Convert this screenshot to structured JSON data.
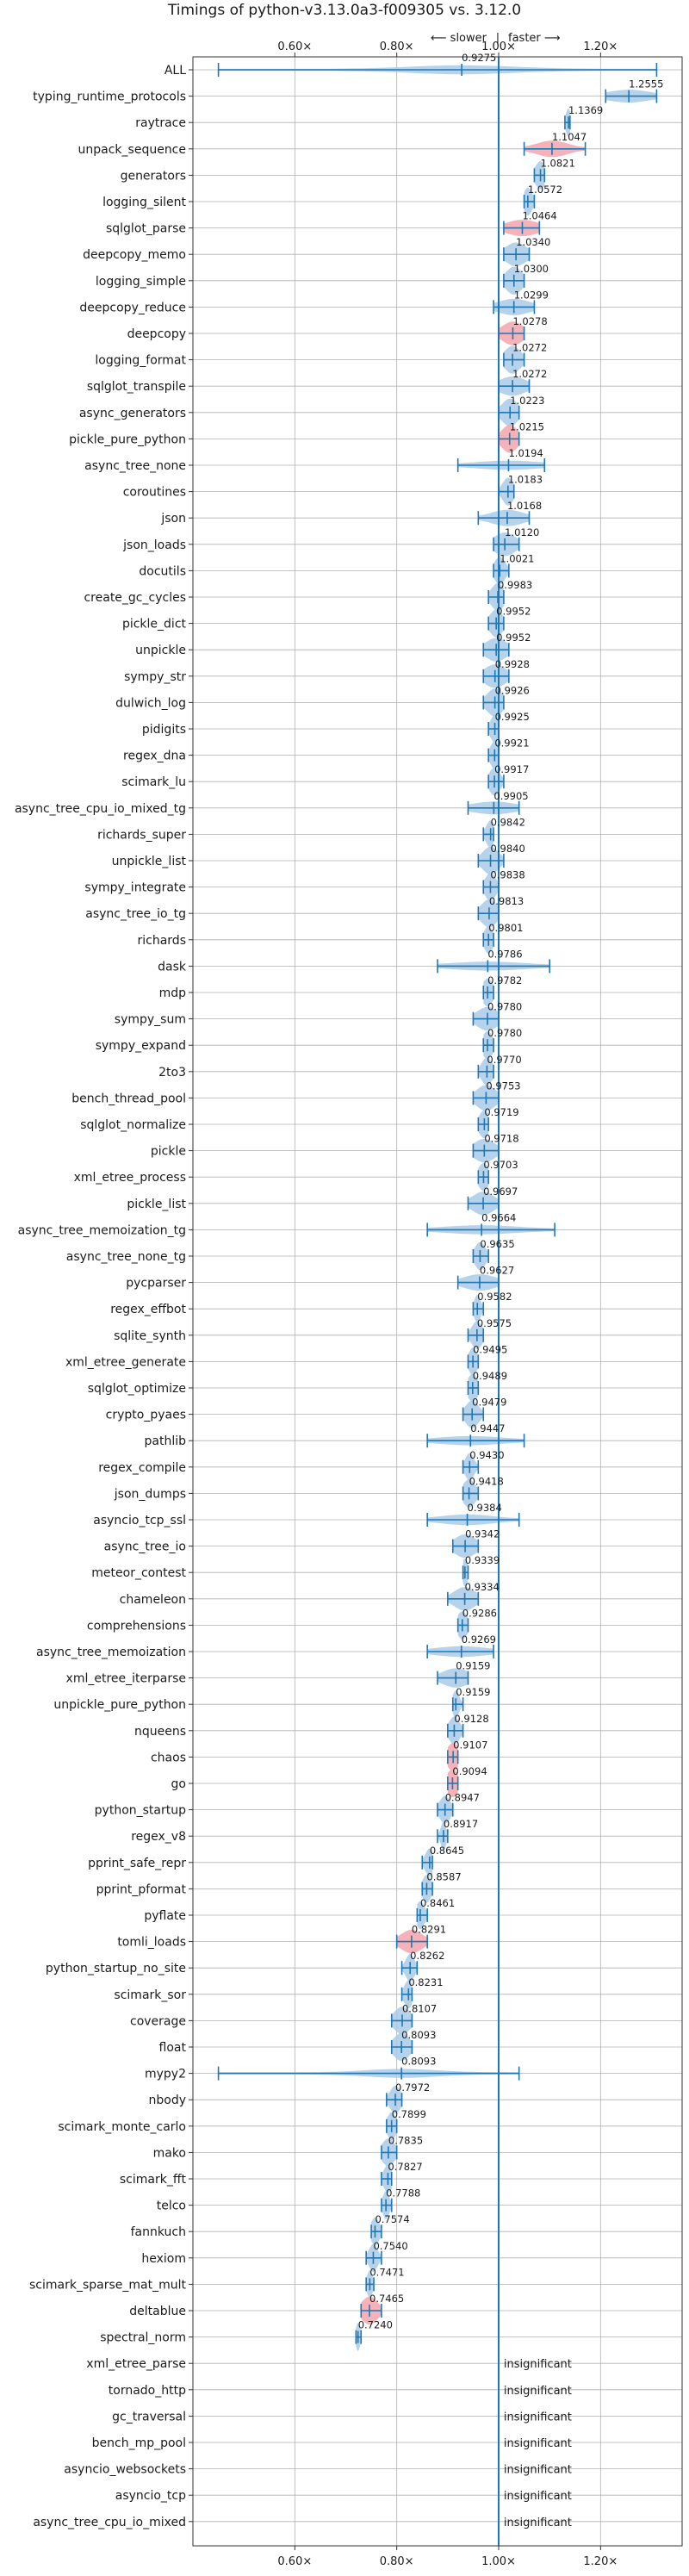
{
  "chart_data": {
    "type": "violin",
    "title": "Timings of python-v3.13.0a3-f009305 vs. 3.12.0",
    "direction_slower": "⟵ slower",
    "direction_sep": "|",
    "direction_faster": "faster ⟶",
    "xlim": [
      0.4,
      1.36
    ],
    "xticks": [
      0.6,
      0.8,
      1.0,
      1.2
    ],
    "xtick_labels": [
      "0.60×",
      "0.80×",
      "1.00×",
      "1.20×"
    ],
    "grid": true,
    "reference_line": 1.0,
    "colors": {
      "violin": "#a9cbe7",
      "violin_significant": "#f3a6ad",
      "whisker": "#1f77b4",
      "grid": "#b0b0b0",
      "text": "#1a1a1a"
    },
    "insignificant_label": "insignificant",
    "benchmarks": [
      {
        "name": "ALL",
        "value": 0.9275,
        "label": "0.9275",
        "lo": 0.45,
        "hi": 1.31,
        "spread": 0.1,
        "red": false
      },
      {
        "name": "typing_runtime_protocols",
        "value": 1.2555,
        "label": "1.2555",
        "lo": 1.21,
        "hi": 1.31,
        "spread": 0.04,
        "red": false
      },
      {
        "name": "raytrace",
        "value": 1.1369,
        "label": "1.1369",
        "lo": 1.13,
        "hi": 1.14,
        "spread": 0.005,
        "red": false
      },
      {
        "name": "unpack_sequence",
        "value": 1.1047,
        "label": "1.1047",
        "lo": 1.05,
        "hi": 1.17,
        "spread": 0.03,
        "red": true
      },
      {
        "name": "generators",
        "value": 1.0821,
        "label": "1.0821",
        "lo": 1.07,
        "hi": 1.09,
        "spread": 0.01,
        "red": false
      },
      {
        "name": "logging_silent",
        "value": 1.0572,
        "label": "1.0572",
        "lo": 1.05,
        "hi": 1.07,
        "spread": 0.008,
        "red": false
      },
      {
        "name": "sqlglot_parse",
        "value": 1.0464,
        "label": "1.0464",
        "lo": 1.01,
        "hi": 1.08,
        "spread": 0.03,
        "red": true
      },
      {
        "name": "deepcopy_memo",
        "value": 1.034,
        "label": "1.0340",
        "lo": 1.01,
        "hi": 1.06,
        "spread": 0.02,
        "red": false
      },
      {
        "name": "logging_simple",
        "value": 1.03,
        "label": "1.0300",
        "lo": 1.01,
        "hi": 1.05,
        "spread": 0.015,
        "red": false
      },
      {
        "name": "deepcopy_reduce",
        "value": 1.0299,
        "label": "1.0299",
        "lo": 0.99,
        "hi": 1.07,
        "spread": 0.03,
        "red": false
      },
      {
        "name": "deepcopy",
        "value": 1.0278,
        "label": "1.0278",
        "lo": 1.0,
        "hi": 1.05,
        "spread": 0.02,
        "red": true
      },
      {
        "name": "logging_format",
        "value": 1.0272,
        "label": "1.0272",
        "lo": 1.01,
        "hi": 1.05,
        "spread": 0.015,
        "red": false
      },
      {
        "name": "sqlglot_transpile",
        "value": 1.0272,
        "label": "1.0272",
        "lo": 1.0,
        "hi": 1.06,
        "spread": 0.025,
        "red": false
      },
      {
        "name": "async_generators",
        "value": 1.0223,
        "label": "1.0223",
        "lo": 1.0,
        "hi": 1.04,
        "spread": 0.015,
        "red": false
      },
      {
        "name": "pickle_pure_python",
        "value": 1.0215,
        "label": "1.0215",
        "lo": 1.0,
        "hi": 1.04,
        "spread": 0.015,
        "red": true
      },
      {
        "name": "async_tree_none",
        "value": 1.0194,
        "label": "1.0194",
        "lo": 0.92,
        "hi": 1.09,
        "spread": 0.06,
        "red": false
      },
      {
        "name": "coroutines",
        "value": 1.0183,
        "label": "1.0183",
        "lo": 1.0,
        "hi": 1.03,
        "spread": 0.01,
        "red": false
      },
      {
        "name": "json",
        "value": 1.0168,
        "label": "1.0168",
        "lo": 0.96,
        "hi": 1.06,
        "spread": 0.03,
        "red": false
      },
      {
        "name": "json_loads",
        "value": 1.012,
        "label": "1.0120",
        "lo": 0.99,
        "hi": 1.04,
        "spread": 0.02,
        "red": false
      },
      {
        "name": "docutils",
        "value": 1.0021,
        "label": "1.0021",
        "lo": 0.99,
        "hi": 1.02,
        "spread": 0.01,
        "red": false
      },
      {
        "name": "create_gc_cycles",
        "value": 0.9983,
        "label": "0.9983",
        "lo": 0.98,
        "hi": 1.01,
        "spread": 0.012,
        "red": false
      },
      {
        "name": "pickle_dict",
        "value": 0.9952,
        "label": "0.9952",
        "lo": 0.98,
        "hi": 1.01,
        "spread": 0.012,
        "red": false
      },
      {
        "name": "unpickle",
        "value": 0.9952,
        "label": "0.9952",
        "lo": 0.97,
        "hi": 1.02,
        "spread": 0.02,
        "red": false
      },
      {
        "name": "sympy_str",
        "value": 0.9928,
        "label": "0.9928",
        "lo": 0.97,
        "hi": 1.02,
        "spread": 0.02,
        "red": false
      },
      {
        "name": "dulwich_log",
        "value": 0.9926,
        "label": "0.9926",
        "lo": 0.97,
        "hi": 1.01,
        "spread": 0.015,
        "red": false
      },
      {
        "name": "pidigits",
        "value": 0.9925,
        "label": "0.9925",
        "lo": 0.98,
        "hi": 1.0,
        "spread": 0.008,
        "red": false
      },
      {
        "name": "regex_dna",
        "value": 0.9921,
        "label": "0.9921",
        "lo": 0.98,
        "hi": 1.0,
        "spread": 0.008,
        "red": false
      },
      {
        "name": "scimark_lu",
        "value": 0.9917,
        "label": "0.9917",
        "lo": 0.98,
        "hi": 1.01,
        "spread": 0.01,
        "red": false
      },
      {
        "name": "async_tree_cpu_io_mixed_tg",
        "value": 0.9905,
        "label": "0.9905",
        "lo": 0.94,
        "hi": 1.04,
        "spread": 0.04,
        "red": false
      },
      {
        "name": "richards_super",
        "value": 0.9842,
        "label": "0.9842",
        "lo": 0.97,
        "hi": 0.99,
        "spread": 0.008,
        "red": false
      },
      {
        "name": "unpickle_list",
        "value": 0.984,
        "label": "0.9840",
        "lo": 0.96,
        "hi": 1.01,
        "spread": 0.015,
        "red": false
      },
      {
        "name": "sympy_integrate",
        "value": 0.9838,
        "label": "0.9838",
        "lo": 0.97,
        "hi": 1.0,
        "spread": 0.01,
        "red": false
      },
      {
        "name": "async_tree_io_tg",
        "value": 0.9813,
        "label": "0.9813",
        "lo": 0.96,
        "hi": 1.0,
        "spread": 0.015,
        "red": false
      },
      {
        "name": "richards",
        "value": 0.9801,
        "label": "0.9801",
        "lo": 0.97,
        "hi": 0.99,
        "spread": 0.008,
        "red": false
      },
      {
        "name": "dask",
        "value": 0.9786,
        "label": "0.9786",
        "lo": 0.88,
        "hi": 1.1,
        "spread": 0.07,
        "red": false
      },
      {
        "name": "mdp",
        "value": 0.9782,
        "label": "0.9782",
        "lo": 0.97,
        "hi": 0.99,
        "spread": 0.01,
        "red": false
      },
      {
        "name": "sympy_sum",
        "value": 0.978,
        "label": "0.9780",
        "lo": 0.95,
        "hi": 1.0,
        "spread": 0.02,
        "red": false
      },
      {
        "name": "sympy_expand",
        "value": 0.978,
        "label": "0.9780",
        "lo": 0.97,
        "hi": 0.99,
        "spread": 0.01,
        "red": false
      },
      {
        "name": "2to3",
        "value": 0.977,
        "label": "0.9770",
        "lo": 0.96,
        "hi": 0.99,
        "spread": 0.01,
        "red": false
      },
      {
        "name": "bench_thread_pool",
        "value": 0.9753,
        "label": "0.9753",
        "lo": 0.95,
        "hi": 1.0,
        "spread": 0.018,
        "red": false
      },
      {
        "name": "sqlglot_normalize",
        "value": 0.9719,
        "label": "0.9719",
        "lo": 0.96,
        "hi": 0.98,
        "spread": 0.01,
        "red": false
      },
      {
        "name": "pickle",
        "value": 0.9718,
        "label": "0.9718",
        "lo": 0.95,
        "hi": 1.0,
        "spread": 0.02,
        "red": false
      },
      {
        "name": "xml_etree_process",
        "value": 0.9703,
        "label": "0.9703",
        "lo": 0.96,
        "hi": 0.98,
        "spread": 0.01,
        "red": false
      },
      {
        "name": "pickle_list",
        "value": 0.9697,
        "label": "0.9697",
        "lo": 0.94,
        "hi": 1.0,
        "spread": 0.02,
        "red": false
      },
      {
        "name": "async_tree_memoization_tg",
        "value": 0.9664,
        "label": "0.9664",
        "lo": 0.86,
        "hi": 1.11,
        "spread": 0.07,
        "red": false
      },
      {
        "name": "async_tree_none_tg",
        "value": 0.9635,
        "label": "0.9635",
        "lo": 0.95,
        "hi": 0.98,
        "spread": 0.01,
        "red": false
      },
      {
        "name": "pycparser",
        "value": 0.9627,
        "label": "0.9627",
        "lo": 0.92,
        "hi": 1.0,
        "spread": 0.03,
        "red": false
      },
      {
        "name": "regex_effbot",
        "value": 0.9582,
        "label": "0.9582",
        "lo": 0.95,
        "hi": 0.97,
        "spread": 0.006,
        "red": false
      },
      {
        "name": "sqlite_synth",
        "value": 0.9575,
        "label": "0.9575",
        "lo": 0.94,
        "hi": 0.97,
        "spread": 0.01,
        "red": false
      },
      {
        "name": "xml_etree_generate",
        "value": 0.9495,
        "label": "0.9495",
        "lo": 0.94,
        "hi": 0.96,
        "spread": 0.008,
        "red": false
      },
      {
        "name": "sqlglot_optimize",
        "value": 0.9489,
        "label": "0.9489",
        "lo": 0.94,
        "hi": 0.96,
        "spread": 0.01,
        "red": false
      },
      {
        "name": "crypto_pyaes",
        "value": 0.9479,
        "label": "0.9479",
        "lo": 0.93,
        "hi": 0.97,
        "spread": 0.012,
        "red": false
      },
      {
        "name": "pathlib",
        "value": 0.9447,
        "label": "0.9447",
        "lo": 0.86,
        "hi": 1.05,
        "spread": 0.06,
        "red": false
      },
      {
        "name": "regex_compile",
        "value": 0.943,
        "label": "0.9430",
        "lo": 0.93,
        "hi": 0.96,
        "spread": 0.008,
        "red": false
      },
      {
        "name": "json_dumps",
        "value": 0.9418,
        "label": "0.9418",
        "lo": 0.93,
        "hi": 0.96,
        "spread": 0.012,
        "red": false
      },
      {
        "name": "asyncio_tcp_ssl",
        "value": 0.9384,
        "label": "0.9384",
        "lo": 0.86,
        "hi": 1.04,
        "spread": 0.05,
        "red": false
      },
      {
        "name": "async_tree_io",
        "value": 0.9342,
        "label": "0.9342",
        "lo": 0.91,
        "hi": 0.96,
        "spread": 0.02,
        "red": false
      },
      {
        "name": "meteor_contest",
        "value": 0.9339,
        "label": "0.9339",
        "lo": 0.93,
        "hi": 0.94,
        "spread": 0.005,
        "red": false
      },
      {
        "name": "chameleon",
        "value": 0.9334,
        "label": "0.9334",
        "lo": 0.9,
        "hi": 0.96,
        "spread": 0.02,
        "red": false
      },
      {
        "name": "comprehensions",
        "value": 0.9286,
        "label": "0.9286",
        "lo": 0.92,
        "hi": 0.94,
        "spread": 0.01,
        "red": false
      },
      {
        "name": "async_tree_memoization",
        "value": 0.9269,
        "label": "0.9269",
        "lo": 0.86,
        "hi": 0.99,
        "spread": 0.05,
        "red": false
      },
      {
        "name": "xml_etree_iterparse",
        "value": 0.9159,
        "label": "0.9159",
        "lo": 0.88,
        "hi": 0.94,
        "spread": 0.025,
        "red": false
      },
      {
        "name": "unpickle_pure_python",
        "value": 0.9159,
        "label": "0.9159",
        "lo": 0.91,
        "hi": 0.93,
        "spread": 0.006,
        "red": false
      },
      {
        "name": "nqueens",
        "value": 0.9128,
        "label": "0.9128",
        "lo": 0.9,
        "hi": 0.93,
        "spread": 0.01,
        "red": false
      },
      {
        "name": "chaos",
        "value": 0.9107,
        "label": "0.9107",
        "lo": 0.9,
        "hi": 0.92,
        "spread": 0.012,
        "red": true
      },
      {
        "name": "go",
        "value": 0.9094,
        "label": "0.9094",
        "lo": 0.9,
        "hi": 0.92,
        "spread": 0.012,
        "red": true
      },
      {
        "name": "python_startup",
        "value": 0.8947,
        "label": "0.8947",
        "lo": 0.88,
        "hi": 0.91,
        "spread": 0.01,
        "red": false
      },
      {
        "name": "regex_v8",
        "value": 0.8917,
        "label": "0.8917",
        "lo": 0.88,
        "hi": 0.9,
        "spread": 0.005,
        "red": false
      },
      {
        "name": "pprint_safe_repr",
        "value": 0.8645,
        "label": "0.8645",
        "lo": 0.85,
        "hi": 0.87,
        "spread": 0.008,
        "red": false
      },
      {
        "name": "pprint_pformat",
        "value": 0.8587,
        "label": "0.8587",
        "lo": 0.85,
        "hi": 0.87,
        "spread": 0.008,
        "red": false
      },
      {
        "name": "pyflate",
        "value": 0.8461,
        "label": "0.8461",
        "lo": 0.84,
        "hi": 0.86,
        "spread": 0.008,
        "red": false
      },
      {
        "name": "tomli_loads",
        "value": 0.8291,
        "label": "0.8291",
        "lo": 0.8,
        "hi": 0.86,
        "spread": 0.02,
        "red": true
      },
      {
        "name": "python_startup_no_site",
        "value": 0.8262,
        "label": "0.8262",
        "lo": 0.81,
        "hi": 0.84,
        "spread": 0.008,
        "red": false
      },
      {
        "name": "scimark_sor",
        "value": 0.8231,
        "label": "0.8231",
        "lo": 0.81,
        "hi": 0.83,
        "spread": 0.008,
        "red": false
      },
      {
        "name": "coverage",
        "value": 0.8107,
        "label": "0.8107",
        "lo": 0.79,
        "hi": 0.83,
        "spread": 0.015,
        "red": false
      },
      {
        "name": "float",
        "value": 0.8093,
        "label": "0.8093",
        "lo": 0.79,
        "hi": 0.83,
        "spread": 0.015,
        "red": false
      },
      {
        "name": "mypy2",
        "value": 0.8093,
        "label": "0.8093",
        "lo": 0.45,
        "hi": 1.04,
        "spread": 0.07,
        "red": false
      },
      {
        "name": "nbody",
        "value": 0.7972,
        "label": "0.7972",
        "lo": 0.78,
        "hi": 0.81,
        "spread": 0.01,
        "red": false
      },
      {
        "name": "scimark_monte_carlo",
        "value": 0.7899,
        "label": "0.7899",
        "lo": 0.78,
        "hi": 0.8,
        "spread": 0.008,
        "red": false
      },
      {
        "name": "mako",
        "value": 0.7835,
        "label": "0.7835",
        "lo": 0.77,
        "hi": 0.8,
        "spread": 0.012,
        "red": false
      },
      {
        "name": "scimark_fft",
        "value": 0.7827,
        "label": "0.7827",
        "lo": 0.77,
        "hi": 0.79,
        "spread": 0.008,
        "red": false
      },
      {
        "name": "telco",
        "value": 0.7788,
        "label": "0.7788",
        "lo": 0.77,
        "hi": 0.79,
        "spread": 0.006,
        "red": false
      },
      {
        "name": "fannkuch",
        "value": 0.7574,
        "label": "0.7574",
        "lo": 0.75,
        "hi": 0.77,
        "spread": 0.008,
        "red": false
      },
      {
        "name": "hexiom",
        "value": 0.754,
        "label": "0.7540",
        "lo": 0.74,
        "hi": 0.77,
        "spread": 0.008,
        "red": false
      },
      {
        "name": "scimark_sparse_mat_mult",
        "value": 0.7471,
        "label": "0.7471",
        "lo": 0.74,
        "hi": 0.755,
        "spread": 0.005,
        "red": false
      },
      {
        "name": "deltablue",
        "value": 0.7465,
        "label": "0.7465",
        "lo": 0.73,
        "hi": 0.77,
        "spread": 0.015,
        "red": true
      },
      {
        "name": "spectral_norm",
        "value": 0.724,
        "label": "0.7240",
        "lo": 0.72,
        "hi": 0.73,
        "spread": 0.004,
        "red": false
      },
      {
        "name": "xml_etree_parse",
        "value": null,
        "label": "insignificant"
      },
      {
        "name": "tornado_http",
        "value": null,
        "label": "insignificant"
      },
      {
        "name": "gc_traversal",
        "value": null,
        "label": "insignificant"
      },
      {
        "name": "bench_mp_pool",
        "value": null,
        "label": "insignificant"
      },
      {
        "name": "asyncio_websockets",
        "value": null,
        "label": "insignificant"
      },
      {
        "name": "asyncio_tcp",
        "value": null,
        "label": "insignificant"
      },
      {
        "name": "async_tree_cpu_io_mixed",
        "value": null,
        "label": "insignificant"
      }
    ]
  }
}
